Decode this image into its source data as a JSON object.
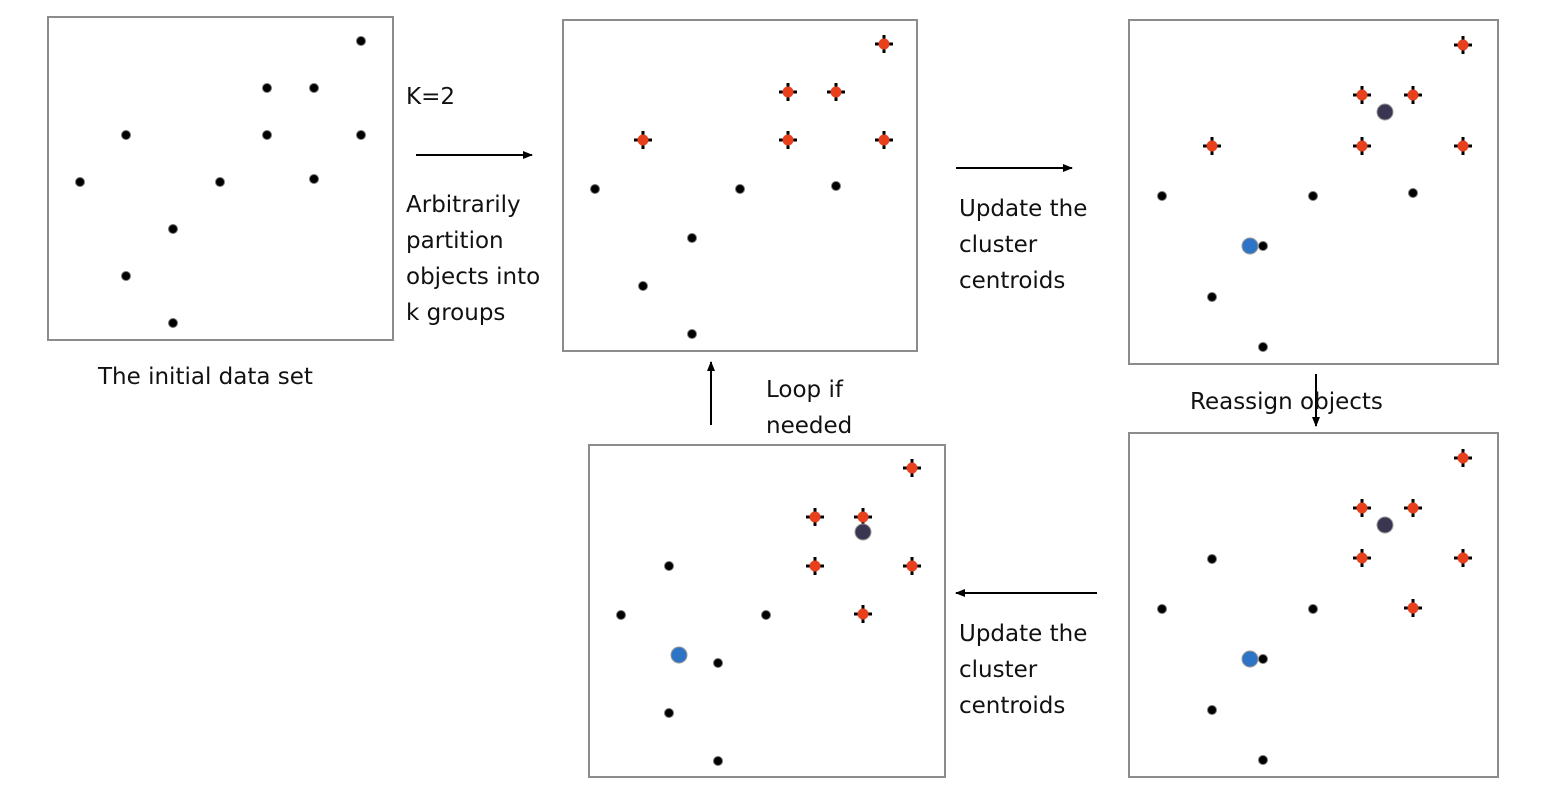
{
  "labels": {
    "initial": "The initial data set",
    "k": "K=2",
    "partition": [
      "Arbitrarily",
      "partition",
      "objects into",
      "k groups"
    ],
    "update1": [
      "Update the",
      "cluster",
      "centroids"
    ],
    "reassign": "Reassign  objects",
    "loop": [
      "Loop if",
      "needed"
    ],
    "update2": [
      "Update the",
      "cluster",
      "centroids"
    ]
  }
}
